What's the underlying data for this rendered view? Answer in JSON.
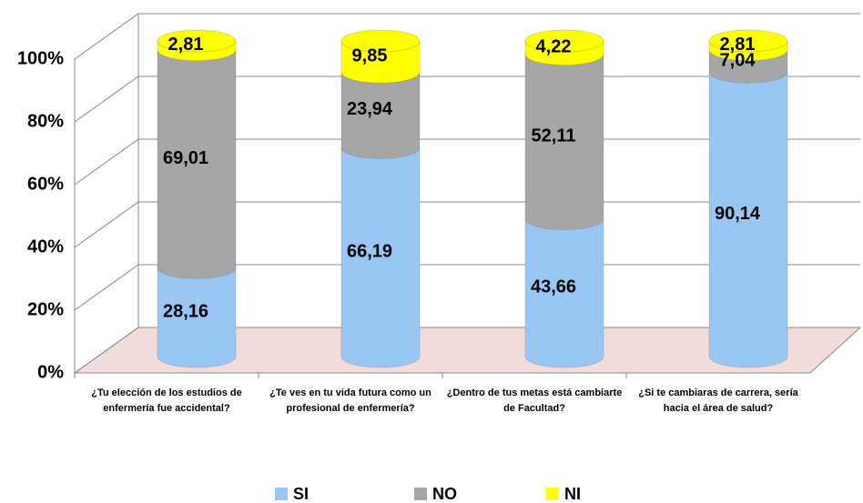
{
  "chart_data": {
    "type": "bar",
    "stacked": true,
    "categories": [
      "¿Tu elección de los estudios de enfermería fue accidental?",
      "¿Te ves en tu vida futura como un profesional de enfermería?",
      "¿Dentro de tus metas está cambiarte de Facultad?",
      "¿Si te cambiaras de carrera, sería hacia el área de salud?"
    ],
    "series": [
      {
        "name": "SI",
        "color": "#99c6f2",
        "values": [
          28.16,
          66.19,
          43.66,
          90.14
        ],
        "value_labels": [
          "28,16",
          "66,19",
          "43,66",
          "90,14"
        ]
      },
      {
        "name": "NO",
        "color": "#a6a6a6",
        "values": [
          69.01,
          23.94,
          52.11,
          7.04
        ],
        "value_labels": [
          "69,01",
          "23,94",
          "52,11",
          "7,04"
        ]
      },
      {
        "name": "NI",
        "color": "#ffff00",
        "values": [
          2.81,
          9.85,
          4.22,
          2.81
        ],
        "value_labels": [
          "2,81",
          "9,85",
          "4,22",
          "2,81"
        ]
      }
    ],
    "ylim": [
      0,
      100
    ],
    "yticks": [
      {
        "value": 0,
        "label": "0%"
      },
      {
        "value": 20,
        "label": "20%"
      },
      {
        "value": 40,
        "label": "40%"
      },
      {
        "value": 60,
        "label": "60%"
      },
      {
        "value": 80,
        "label": "80%"
      },
      {
        "value": 100,
        "label": "100%"
      }
    ],
    "grid": true,
    "floor_color": "#f2dcdb",
    "legend": "bottom"
  }
}
